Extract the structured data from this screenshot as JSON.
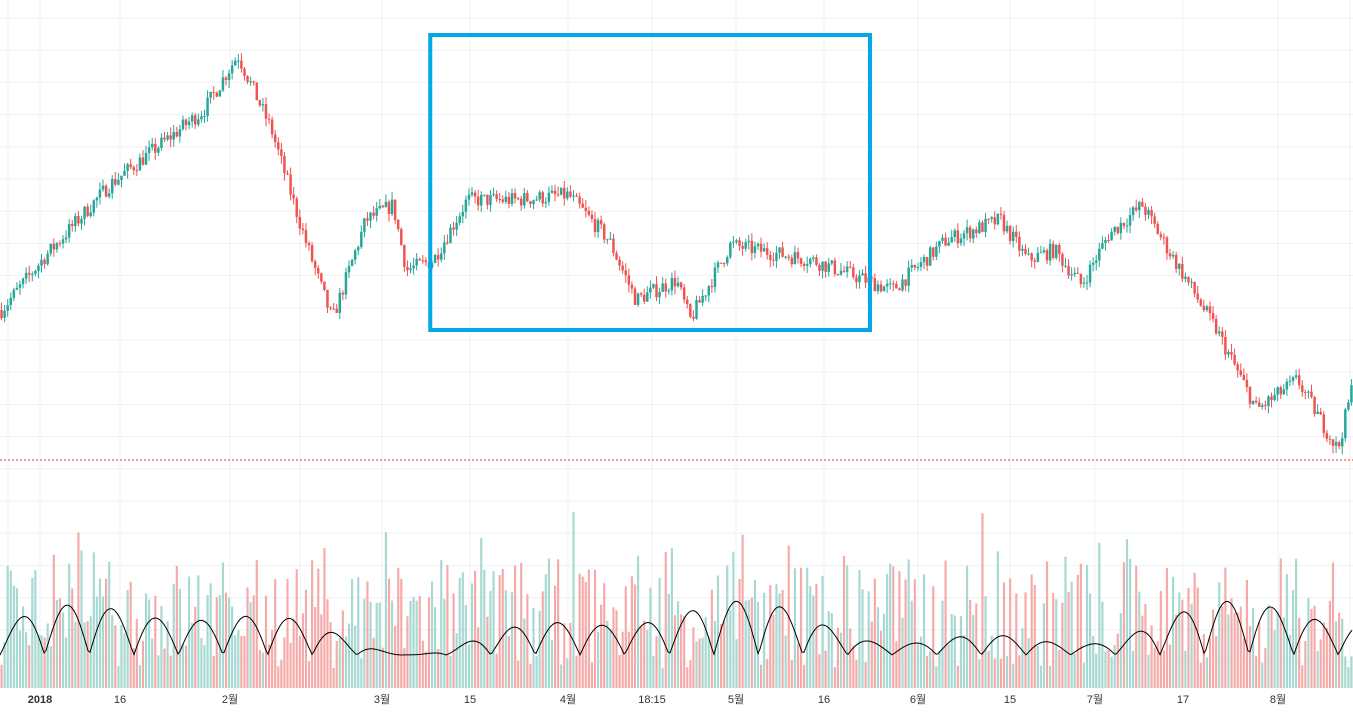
{
  "chart_data": {
    "type": "candlestick",
    "title": "",
    "grid": true,
    "up_color": "#26a69a",
    "down_color": "#ef5350",
    "volume_up_color": "#a7d8d1",
    "volume_down_color": "#f5aaa8",
    "oscillator_color": "#000000",
    "highlight_box_color": "#00a8e8",
    "reference_line_color": "#e53935",
    "x_tick_labels": [
      "2018",
      "16",
      "2월",
      "3월",
      "15",
      "4월",
      "18:15",
      "5월",
      "16",
      "6월",
      "15",
      "7월",
      "17",
      "8월"
    ],
    "price_range": [
      0,
      100
    ],
    "price_anchors": [
      {
        "t": 0.0,
        "v": 42
      },
      {
        "t": 0.03,
        "v": 52
      },
      {
        "t": 0.08,
        "v": 67
      },
      {
        "t": 0.15,
        "v": 82
      },
      {
        "t": 0.175,
        "v": 93
      },
      {
        "t": 0.2,
        "v": 78
      },
      {
        "t": 0.225,
        "v": 56
      },
      {
        "t": 0.245,
        "v": 40
      },
      {
        "t": 0.27,
        "v": 60
      },
      {
        "t": 0.29,
        "v": 63
      },
      {
        "t": 0.3,
        "v": 50
      },
      {
        "t": 0.32,
        "v": 52
      },
      {
        "t": 0.345,
        "v": 64
      },
      {
        "t": 0.38,
        "v": 64
      },
      {
        "t": 0.42,
        "v": 65
      },
      {
        "t": 0.45,
        "v": 56
      },
      {
        "t": 0.47,
        "v": 44
      },
      {
        "t": 0.5,
        "v": 48
      },
      {
        "t": 0.51,
        "v": 40
      },
      {
        "t": 0.54,
        "v": 55
      },
      {
        "t": 0.6,
        "v": 52
      },
      {
        "t": 0.63,
        "v": 49
      },
      {
        "t": 0.66,
        "v": 46
      },
      {
        "t": 0.7,
        "v": 56
      },
      {
        "t": 0.74,
        "v": 60
      },
      {
        "t": 0.76,
        "v": 52
      },
      {
        "t": 0.78,
        "v": 54
      },
      {
        "t": 0.8,
        "v": 47
      },
      {
        "t": 0.82,
        "v": 57
      },
      {
        "t": 0.845,
        "v": 63
      },
      {
        "t": 0.86,
        "v": 56
      },
      {
        "t": 0.9,
        "v": 38
      },
      {
        "t": 0.93,
        "v": 22
      },
      {
        "t": 0.96,
        "v": 28
      },
      {
        "t": 0.99,
        "v": 14
      },
      {
        "t": 1.0,
        "v": 26
      }
    ],
    "reference_level": 12,
    "highlight_range": {
      "t_start": 0.318,
      "t_end": 0.643,
      "v_low": 38,
      "v_high": 97
    }
  }
}
